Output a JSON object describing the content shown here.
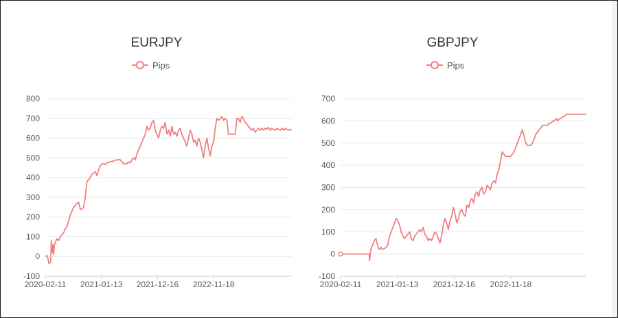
{
  "colors": {
    "series": "#f08080",
    "grid": "#e6e8f0",
    "axis_text": "#555555",
    "title": "#333333"
  },
  "chart_data": [
    {
      "type": "line",
      "title": "EURJPY",
      "legend": {
        "position": "top-center",
        "entries": [
          "Pips"
        ]
      },
      "grid": true,
      "ylim": [
        -100,
        800
      ],
      "yticks": [
        -100,
        0,
        100,
        200,
        300,
        400,
        500,
        600,
        700,
        800
      ],
      "x_tick_labels": [
        "2020-02-11",
        "2021-01-13",
        "2021-12-16",
        "2022-11-18"
      ],
      "x_range_days": [
        0,
        1480
      ],
      "x_tick_days": [
        0,
        337,
        674,
        1011
      ],
      "series": [
        {
          "name": "Pips",
          "x_days": [
            0,
            8,
            16,
            22,
            32,
            36,
            42,
            46,
            50,
            55,
            60,
            68,
            80,
            90,
            100,
            110,
            120,
            130,
            140,
            150,
            160,
            170,
            180,
            190,
            195,
            200,
            210,
            220,
            230,
            240,
            250,
            260,
            270,
            275,
            285,
            300,
            310,
            320,
            330,
            340,
            350,
            360,
            370,
            390,
            410,
            430,
            450,
            470,
            490,
            500,
            510,
            520,
            530,
            540,
            550,
            560,
            570,
            580,
            590,
            600,
            610,
            620,
            630,
            640,
            650,
            660,
            670,
            680,
            690,
            700,
            710,
            720,
            730,
            740,
            750,
            760,
            770,
            780,
            790,
            800,
            810,
            820,
            830,
            840,
            850,
            860,
            870,
            880,
            890,
            900,
            910,
            920,
            930,
            940,
            950,
            960,
            970,
            980,
            990,
            1000,
            1010,
            1020,
            1030,
            1040,
            1050,
            1060,
            1070,
            1080,
            1090,
            1100,
            1110,
            1120,
            1130,
            1140,
            1150,
            1160,
            1170,
            1180,
            1190,
            1200,
            1210,
            1220,
            1230,
            1240,
            1250,
            1260,
            1270,
            1280,
            1290,
            1300,
            1310,
            1320,
            1330,
            1340,
            1350,
            1360,
            1370,
            1380,
            1390,
            1400,
            1410,
            1420,
            1430,
            1440,
            1450,
            1460,
            1470,
            1478
          ],
          "values": [
            0,
            5,
            -10,
            -35,
            -30,
            80,
            20,
            60,
            10,
            60,
            70,
            90,
            80,
            100,
            110,
            120,
            140,
            150,
            180,
            210,
            230,
            250,
            260,
            270,
            270,
            275,
            240,
            240,
            250,
            300,
            380,
            390,
            400,
            410,
            420,
            430,
            410,
            440,
            460,
            470,
            470,
            465,
            475,
            480,
            485,
            490,
            490,
            470,
            470,
            480,
            475,
            490,
            500,
            490,
            520,
            540,
            560,
            580,
            600,
            620,
            660,
            640,
            650,
            680,
            690,
            640,
            620,
            600,
            640,
            660,
            650,
            680,
            620,
            640,
            610,
            660,
            620,
            630,
            610,
            640,
            650,
            620,
            600,
            580,
            560,
            600,
            640,
            620,
            580,
            590,
            560,
            600,
            580,
            540,
            500,
            560,
            600,
            550,
            510,
            560,
            580,
            650,
            700,
            690,
            700,
            710,
            690,
            700,
            690,
            620,
            620,
            620,
            620,
            620,
            700,
            700,
            680,
            710,
            700,
            680,
            670,
            660,
            650,
            640,
            650,
            630,
            640,
            650,
            640,
            650,
            640,
            650,
            645,
            655,
            640,
            650,
            645,
            640,
            650,
            645,
            640,
            650,
            640,
            650,
            645,
            640,
            645,
            640
          ]
        }
      ]
    },
    {
      "type": "line",
      "title": "GBPJPY",
      "legend": {
        "position": "top-center",
        "entries": [
          "Pips"
        ]
      },
      "grid": true,
      "ylim": [
        -100,
        700
      ],
      "yticks": [
        -100,
        0,
        100,
        200,
        300,
        400,
        500,
        600,
        700
      ],
      "x_tick_labels": [
        "2020-02-11",
        "2021-01-13",
        "2021-12-16",
        "2022-11-18"
      ],
      "x_range_days": [
        0,
        1460
      ],
      "x_tick_days": [
        0,
        337,
        674,
        1011
      ],
      "series": [
        {
          "name": "Pips",
          "x_days": [
            0,
            50,
            100,
            150,
            170,
            172,
            180,
            190,
            200,
            210,
            220,
            230,
            240,
            250,
            260,
            270,
            280,
            290,
            300,
            310,
            320,
            330,
            340,
            350,
            360,
            370,
            380,
            390,
            400,
            410,
            420,
            430,
            440,
            450,
            460,
            470,
            480,
            490,
            500,
            510,
            520,
            530,
            540,
            550,
            560,
            570,
            580,
            590,
            600,
            610,
            620,
            630,
            640,
            650,
            660,
            670,
            680,
            690,
            700,
            710,
            720,
            730,
            740,
            750,
            760,
            770,
            780,
            790,
            800,
            810,
            820,
            830,
            840,
            850,
            860,
            870,
            880,
            890,
            900,
            910,
            920,
            930,
            940,
            950,
            960,
            970,
            980,
            990,
            1000,
            1010,
            1020,
            1030,
            1040,
            1050,
            1060,
            1070,
            1080,
            1090,
            1100,
            1110,
            1120,
            1130,
            1140,
            1150,
            1160,
            1170,
            1180,
            1190,
            1200,
            1210,
            1220,
            1230,
            1240,
            1250,
            1260,
            1270,
            1280,
            1290,
            1300,
            1310,
            1320,
            1330,
            1340,
            1350,
            1360,
            1370,
            1380,
            1390,
            1400,
            1410,
            1420,
            1430,
            1440,
            1450,
            1458
          ],
          "values": [
            0,
            0,
            0,
            0,
            0,
            -30,
            20,
            40,
            60,
            70,
            40,
            20,
            30,
            20,
            25,
            30,
            40,
            80,
            100,
            120,
            140,
            160,
            150,
            130,
            100,
            80,
            70,
            80,
            90,
            100,
            70,
            60,
            80,
            90,
            100,
            110,
            100,
            120,
            90,
            80,
            60,
            70,
            60,
            80,
            100,
            90,
            70,
            50,
            80,
            130,
            160,
            140,
            110,
            150,
            170,
            210,
            180,
            140,
            160,
            190,
            200,
            180,
            170,
            220,
            210,
            240,
            250,
            230,
            270,
            280,
            260,
            290,
            300,
            270,
            280,
            310,
            300,
            290,
            320,
            330,
            320,
            360,
            380,
            420,
            460,
            450,
            440,
            440,
            440,
            440,
            450,
            460,
            480,
            500,
            520,
            540,
            560,
            530,
            500,
            490,
            490,
            490,
            500,
            520,
            540,
            550,
            560,
            570,
            580,
            580,
            580,
            580,
            590,
            590,
            600,
            600,
            610,
            600,
            610,
            610,
            620,
            620,
            630,
            630,
            630,
            630,
            630,
            630,
            630,
            630,
            630,
            630,
            630,
            630,
            630
          ]
        }
      ]
    }
  ]
}
